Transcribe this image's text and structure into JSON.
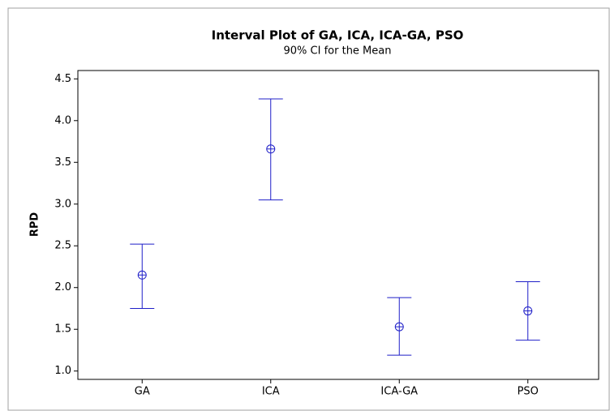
{
  "chart_data": {
    "type": "interval",
    "title": "Interval Plot of GA, ICA, ICA-GA, PSO",
    "subtitle": "90% CI for the Mean",
    "y_label": "RPD",
    "categories": [
      "GA",
      "ICA",
      "ICA-GA",
      "PSO"
    ],
    "values": [
      2.15,
      3.66,
      1.53,
      1.72
    ],
    "lower": [
      1.75,
      3.05,
      1.19,
      1.37
    ],
    "upper": [
      2.52,
      4.26,
      1.88,
      2.07
    ],
    "color": "#1f1fc8",
    "ylim": [
      0.9,
      4.6
    ],
    "yticks": [
      {
        "value": 1,
        "label": "1.0"
      },
      1.5,
      {
        "value": 2,
        "label": "2.0"
      },
      2.5,
      {
        "value": 3,
        "label": "3.0"
      },
      3.5,
      {
        "value": 4,
        "label": "4.0"
      },
      4.5
    ]
  }
}
